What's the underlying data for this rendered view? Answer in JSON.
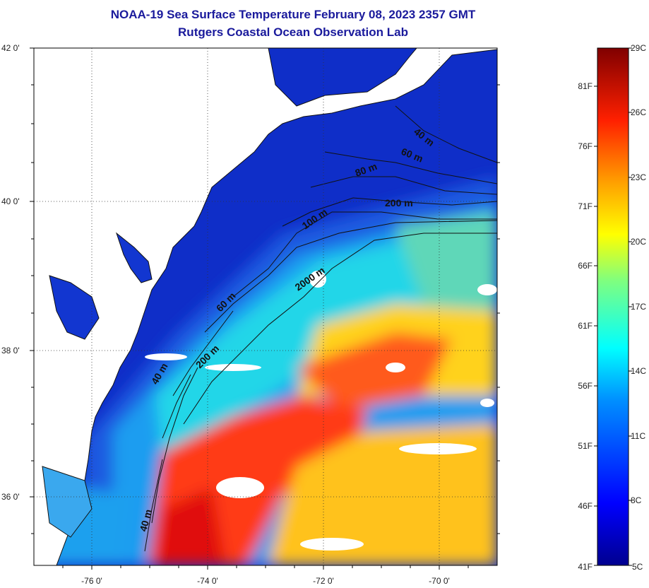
{
  "header": {
    "title": "NOAA-19 Sea Surface Temperature February 08, 2023 2357 GMT",
    "subtitle": "Rutgers Coastal Ocean Observation Lab"
  },
  "map": {
    "lat_ticks": [
      "42 0'",
      "40 0'",
      "38 0'",
      "36 0'"
    ],
    "lon_ticks": [
      "-76 0'",
      "-74 0'",
      "-72 0'",
      "-70 0'"
    ],
    "contour_labels": [
      "40 m",
      "60 m",
      "80 m",
      "200 m",
      "100 m",
      "2000 m",
      "60 m",
      "200 m",
      "40 m",
      "40 m"
    ],
    "colors": {
      "land": "#ffffff",
      "cold": "#0a1ecc",
      "warm": "#e01a10",
      "coastline": "#111111"
    }
  },
  "colorbar": {
    "celsius_labels": [
      "29C",
      "26C",
      "23C",
      "20C",
      "17C",
      "14C",
      "11C",
      "8C",
      "5C"
    ],
    "fahrenheit_labels": [
      "81F",
      "76F",
      "71F",
      "66F",
      "61F",
      "56F",
      "51F",
      "46F",
      "41F"
    ],
    "range_c": [
      5,
      29
    ]
  }
}
